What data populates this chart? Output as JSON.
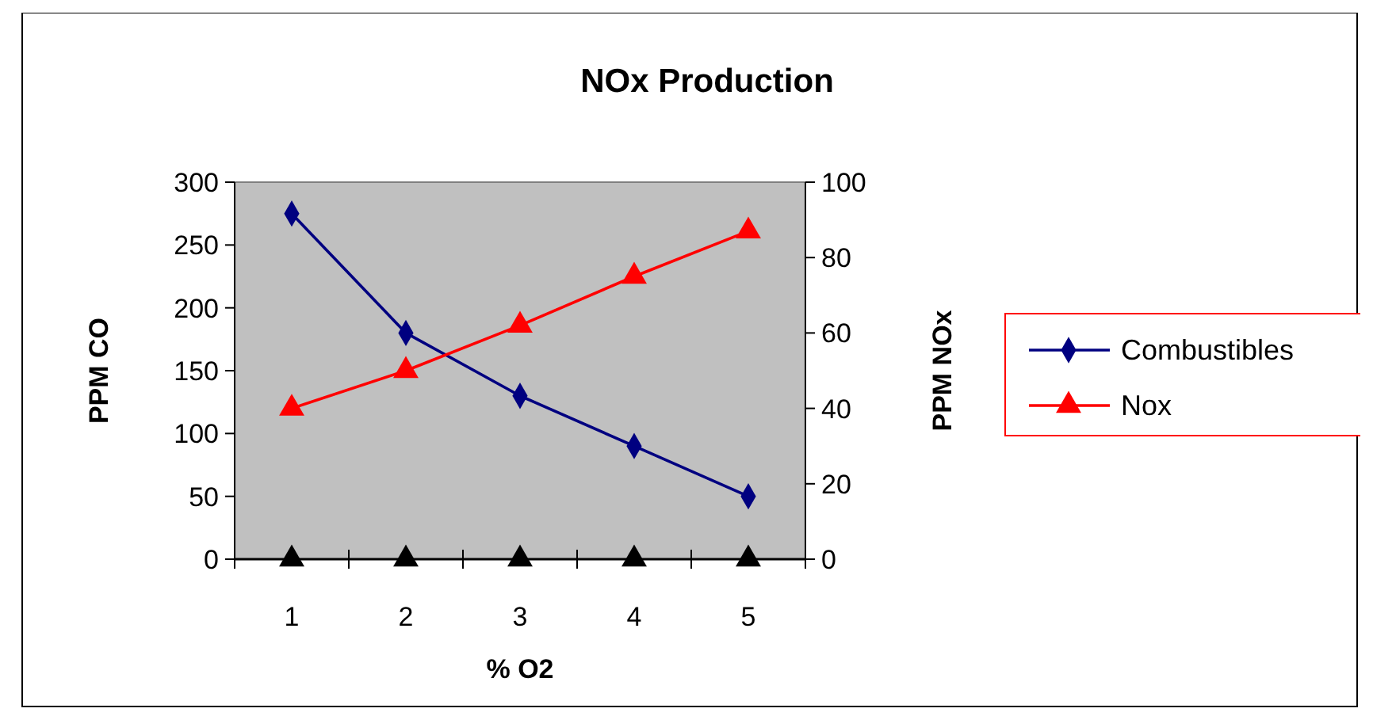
{
  "chart_data": {
    "type": "line",
    "title": "NOx Production",
    "xlabel": "% O2",
    "ylabel": "PPM CO",
    "y2label": "PPM NOx",
    "categories": [
      "1",
      "2",
      "3",
      "4",
      "5"
    ],
    "ylim": [
      0,
      300
    ],
    "yticks": [
      0,
      50,
      100,
      150,
      200,
      250,
      300
    ],
    "y2lim": [
      0,
      100
    ],
    "y2ticks": [
      0,
      20,
      40,
      60,
      80,
      100
    ],
    "grid": false,
    "legend": "right",
    "series": [
      {
        "name": "Combustibles",
        "color": "#000080",
        "marker": "diamond",
        "values": [
          275,
          180,
          130,
          90,
          50
        ]
      },
      {
        "name": "Nox",
        "color": "#ff0000",
        "marker": "triangle",
        "axis": "y2",
        "values": [
          40,
          50,
          62,
          75,
          87
        ]
      },
      {
        "type": "scatter",
        "color": "#000000",
        "marker": "triangle",
        "values": [
          0,
          0,
          0,
          0,
          0
        ]
      }
    ]
  }
}
